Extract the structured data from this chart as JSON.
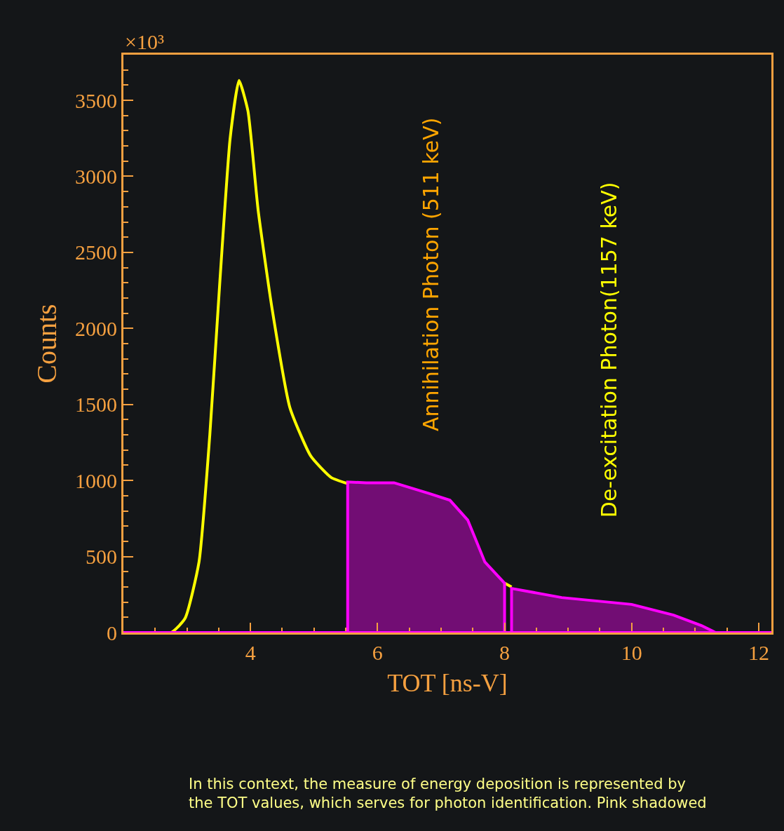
{
  "chart_data": {
    "type": "line",
    "xlabel": "TOT [ns-V]",
    "ylabel": "Counts",
    "xlim": [
      2,
      12.2
    ],
    "ylim": [
      0,
      3800
    ],
    "xticks": [
      4,
      6,
      8,
      10,
      12
    ],
    "yticks": [
      0,
      500,
      1000,
      1500,
      2000,
      2500,
      3000,
      3500
    ],
    "grid": false,
    "series": [
      {
        "color": "#ffff00",
        "x": [
          2.0,
          2.75,
          2.97,
          3.19,
          3.36,
          3.52,
          3.68,
          3.82,
          3.96,
          4.12,
          4.34,
          4.62,
          4.95,
          5.27,
          5.53,
          5.82,
          6.26,
          6.81,
          7.14,
          7.42,
          7.69,
          8.0,
          8.11
        ],
        "values": [
          0,
          0,
          93,
          464,
          1300,
          2320,
          3250,
          3630,
          3430,
          2780,
          2130,
          1480,
          1160,
          1020,
          980,
          null,
          null,
          null,
          null,
          null,
          null,
          325,
          300
        ]
      },
      {
        "type": "area",
        "color": "#ff00ff",
        "x": [
          5.53,
          5.53,
          5.82,
          6.26,
          6.81,
          7.14,
          7.42,
          7.69,
          8.0,
          8.0
        ],
        "values": [
          0,
          990,
          985,
          985,
          915,
          870,
          740,
          464,
          325,
          0
        ]
      },
      {
        "type": "area",
        "color": "#ff00ff",
        "x": [
          8.11,
          8.11,
          8.9,
          10.0,
          10.66,
          11.1,
          11.32,
          12.2
        ],
        "values": [
          0,
          290,
          230,
          185,
          115,
          46,
          0,
          0
        ]
      }
    ],
    "ref_lines": [
      {
        "axis": "y",
        "value": 0,
        "color": "#ff00ff"
      }
    ],
    "annotations": [
      "×10³",
      "Annihilation Photon (511 keV)",
      "De-excitation Photon(1157 keV)",
      "In this context, the measure of energy deposition is represented by the TOT values, which serves for photon identification. Pink shadowed"
    ]
  }
}
